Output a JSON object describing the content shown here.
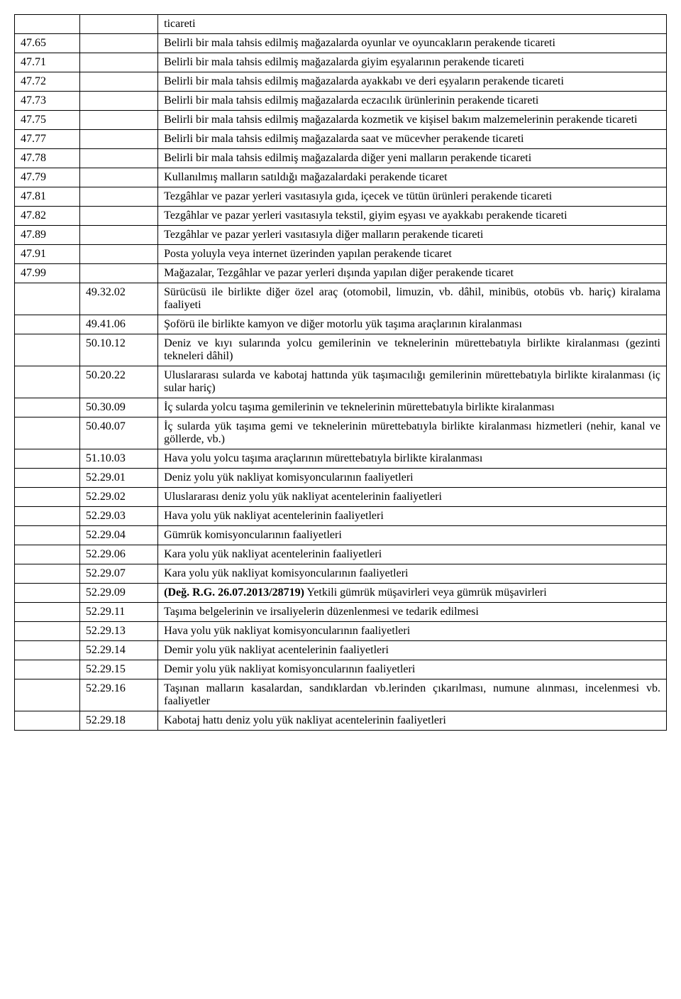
{
  "table": {
    "col_widths": [
      "10%",
      "12%",
      "78%"
    ],
    "font_family": "Times New Roman",
    "font_size_pt": 12,
    "border_color": "#000000",
    "background_color": "#ffffff",
    "text_color": "#000000",
    "rows": [
      {
        "c1": "",
        "c2": "",
        "c3": "ticareti"
      },
      {
        "c1": "47.65",
        "c2": "",
        "c3": "Belirli bir mala tahsis edilmiş mağazalarda oyunlar ve oyuncakların perakende ticareti"
      },
      {
        "c1": "47.71",
        "c2": "",
        "c3": "Belirli bir mala tahsis edilmiş mağazalarda giyim eşyalarının perakende ticareti"
      },
      {
        "c1": "47.72",
        "c2": "",
        "c3": "Belirli bir mala tahsis edilmiş mağazalarda ayakkabı ve deri eşyaların perakende ticareti"
      },
      {
        "c1": "47.73",
        "c2": "",
        "c3": "Belirli bir mala tahsis edilmiş mağazalarda eczacılık ürünlerinin perakende ticareti"
      },
      {
        "c1": "47.75",
        "c2": "",
        "c3": "Belirli bir mala tahsis edilmiş mağazalarda kozmetik ve kişisel bakım malzemelerinin perakende ticareti"
      },
      {
        "c1": "47.77",
        "c2": "",
        "c3": "Belirli bir mala tahsis edilmiş mağazalarda saat ve mücevher perakende ticareti"
      },
      {
        "c1": "47.78",
        "c2": "",
        "c3": "Belirli bir mala tahsis edilmiş mağazalarda diğer yeni malların perakende ticareti"
      },
      {
        "c1": "47.79",
        "c2": "",
        "c3": "Kullanılmış malların satıldığı mağazalardaki perakende ticaret"
      },
      {
        "c1": "47.81",
        "c2": "",
        "c3": "Tezgâhlar ve pazar yerleri vasıtasıyla gıda, içecek ve tütün ürünleri perakende ticareti"
      },
      {
        "c1": "47.82",
        "c2": "",
        "c3": "Tezgâhlar ve pazar yerleri vasıtasıyla tekstil, giyim eşyası ve ayakkabı perakende ticareti"
      },
      {
        "c1": "47.89",
        "c2": "",
        "c3": "Tezgâhlar ve pazar yerleri vasıtasıyla diğer malların perakende ticareti"
      },
      {
        "c1": "47.91",
        "c2": "",
        "c3": "Posta yoluyla veya internet üzerinden yapılan perakende ticaret"
      },
      {
        "c1": "47.99",
        "c2": "",
        "c3": "Mağazalar, Tezgâhlar ve pazar yerleri dışında yapılan diğer perakende ticaret"
      },
      {
        "c1": "",
        "c2": "49.32.02",
        "c3": "Sürücüsü ile birlikte diğer özel araç (otomobil, limuzin, vb. dâhil, minibüs, otobüs vb. hariç) kiralama faaliyeti"
      },
      {
        "c1": "",
        "c2": "49.41.06",
        "c3": "Şoförü ile birlikte kamyon ve diğer motorlu yük taşıma araçlarının kiralanması"
      },
      {
        "c1": "",
        "c2": "50.10.12",
        "c3": "Deniz ve kıyı sularında yolcu gemilerinin ve teknelerinin mürettebatıyla birlikte kiralanması (gezinti tekneleri dâhil)"
      },
      {
        "c1": "",
        "c2": "50.20.22",
        "c3": "Uluslararası sularda ve kabotaj hattında yük taşımacılığı gemilerinin mürettebatıyla birlikte kiralanması (iç sular hariç)"
      },
      {
        "c1": "",
        "c2": "50.30.09",
        "c3": "İç sularda yolcu taşıma gemilerinin ve teknelerinin mürettebatıyla birlikte kiralanması"
      },
      {
        "c1": "",
        "c2": "50.40.07",
        "c3": "İç sularda yük taşıma gemi ve teknelerinin mürettebatıyla birlikte kiralanması hizmetleri (nehir, kanal ve göllerde, vb.)"
      },
      {
        "c1": "",
        "c2": "51.10.03",
        "c3": "Hava yolu yolcu taşıma araçlarının mürettebatıyla birlikte kiralanması"
      },
      {
        "c1": "",
        "c2": "52.29.01",
        "c3": "Deniz yolu yük nakliyat komisyoncularının faaliyetleri"
      },
      {
        "c1": "",
        "c2": "52.29.02",
        "c3": "Uluslararası deniz yolu yük nakliyat acentelerinin faaliyetleri"
      },
      {
        "c1": "",
        "c2": "52.29.03",
        "c3": "Hava yolu yük nakliyat acentelerinin faaliyetleri"
      },
      {
        "c1": "",
        "c2": "52.29.04",
        "c3": "Gümrük komisyoncularının faaliyetleri"
      },
      {
        "c1": "",
        "c2": "52.29.06",
        "c3": "Kara yolu yük nakliyat acentelerinin faaliyetleri"
      },
      {
        "c1": "",
        "c2": "52.29.07",
        "c3": "Kara yolu yük nakliyat komisyoncularının faaliyetleri"
      },
      {
        "c1": "",
        "c2": "52.29.09",
        "c3_bold": "(Değ. R.G. 26.07.2013/28719)",
        "c3_rest": " Yetkili gümrük müşavirleri veya gümrük müşavirleri"
      },
      {
        "c1": "",
        "c2": "52.29.11",
        "c3": "Taşıma belgelerinin ve irsaliyelerin düzenlenmesi ve tedarik edilmesi"
      },
      {
        "c1": "",
        "c2": "52.29.13",
        "c3": "Hava yolu yük nakliyat komisyoncularının faaliyetleri"
      },
      {
        "c1": "",
        "c2": "52.29.14",
        "c3": "Demir yolu yük nakliyat acentelerinin faaliyetleri"
      },
      {
        "c1": "",
        "c2": "52.29.15",
        "c3": "Demir yolu yük nakliyat komisyoncularının faaliyetleri"
      },
      {
        "c1": "",
        "c2": "52.29.16",
        "c3": "Taşınan malların kasalardan, sandıklardan vb.lerinden çıkarılması, numune alınması, incelenmesi vb. faaliyetler"
      },
      {
        "c1": "",
        "c2": "52.29.18",
        "c3": "Kabotaj hattı deniz yolu yük nakliyat acentelerinin faaliyetleri"
      }
    ]
  }
}
